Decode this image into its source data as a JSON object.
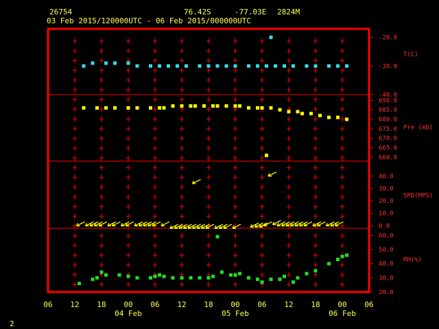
{
  "header": {
    "station": "26754",
    "lat": "76.42S",
    "lon": "-77.03E",
    "elev": "2824M",
    "time_range": "03 Feb 2015/120000UTC - 06 Feb 2015/000000UTC"
  },
  "footer": {
    "page_number": "2"
  },
  "colors": {
    "frame": "#ff0000",
    "temperature": "#33ddee",
    "pressure": "#ffff00",
    "wind": "#ffff00",
    "rh": "#22dd22",
    "text": "#ffff55"
  },
  "chart_data": {
    "type": "scatter",
    "x_axis": {
      "ticks": [
        "06",
        "12",
        "18",
        "00",
        "06",
        "12",
        "18",
        "00",
        "06",
        "12",
        "18",
        "00",
        "06"
      ],
      "day_labels": [
        {
          "label": "04 Feb",
          "at_hour": 24
        },
        {
          "label": "05 Feb",
          "at_hour": 48
        },
        {
          "label": "06 Feb",
          "at_hour": 72
        }
      ],
      "xlim_hours_from_03Feb00": [
        6,
        78
      ]
    },
    "panels": [
      {
        "name": "temperature",
        "ylabel": "T(C)",
        "ylim": [
          -40,
          -17
        ],
        "ticks": [
          "-20.0",
          "-30.0",
          "-40.0"
        ],
        "tick_values": [
          -20,
          -30,
          -40
        ],
        "points": [
          [
            14,
            -30
          ],
          [
            16,
            -29
          ],
          [
            19,
            -29
          ],
          [
            21,
            -29
          ],
          [
            24,
            -29
          ],
          [
            26,
            -30
          ],
          [
            29,
            -30
          ],
          [
            31,
            -30
          ],
          [
            33,
            -30
          ],
          [
            35,
            -30
          ],
          [
            37,
            -30
          ],
          [
            40,
            -30
          ],
          [
            42,
            -30
          ],
          [
            44,
            -30
          ],
          [
            46,
            -30
          ],
          [
            48,
            -30
          ],
          [
            51,
            -30
          ],
          [
            53,
            -30
          ],
          [
            55,
            -30
          ],
          [
            56,
            -20
          ],
          [
            57,
            -30
          ],
          [
            59,
            -30
          ],
          [
            61,
            -30
          ],
          [
            64,
            -30
          ],
          [
            66,
            -30
          ],
          [
            69,
            -30
          ],
          [
            71,
            -30
          ],
          [
            73,
            -30
          ]
        ]
      },
      {
        "name": "pressure",
        "ylabel": "Pre (mb)",
        "ylim": [
          658,
          693
        ],
        "ticks": [
          "690.0",
          "685.0",
          "680.0",
          "675.0",
          "670.0",
          "665.0",
          "660.0"
        ],
        "tick_values": [
          690,
          685,
          680,
          675,
          670,
          665,
          660
        ],
        "points": [
          [
            14,
            686
          ],
          [
            17,
            686
          ],
          [
            19,
            686
          ],
          [
            21,
            686
          ],
          [
            24,
            686
          ],
          [
            26,
            686
          ],
          [
            29,
            686
          ],
          [
            31,
            686
          ],
          [
            32,
            686
          ],
          [
            34,
            687
          ],
          [
            36,
            687
          ],
          [
            38,
            687
          ],
          [
            39,
            687
          ],
          [
            41,
            687
          ],
          [
            43,
            687
          ],
          [
            44,
            687
          ],
          [
            46,
            687
          ],
          [
            48,
            687
          ],
          [
            49,
            687
          ],
          [
            51,
            686
          ],
          [
            53,
            686
          ],
          [
            54,
            686
          ],
          [
            55,
            661
          ],
          [
            56,
            686
          ],
          [
            58,
            685
          ],
          [
            60,
            684
          ],
          [
            62,
            684
          ],
          [
            63,
            683
          ],
          [
            65,
            683
          ],
          [
            67,
            682
          ],
          [
            69,
            681
          ],
          [
            71,
            681
          ],
          [
            73,
            680
          ]
        ]
      },
      {
        "name": "wind",
        "ylabel": "SPD(MPS)",
        "ylim": [
          -2,
          52
        ],
        "ticks": [
          "40.0",
          "30.0",
          "20.0",
          "10.0",
          "0.0"
        ],
        "tick_values": [
          40,
          30,
          20,
          10,
          0
        ],
        "points": [
          [
            13,
            1
          ],
          [
            15,
            1
          ],
          [
            16,
            1
          ],
          [
            17,
            1
          ],
          [
            18,
            1
          ],
          [
            20,
            1
          ],
          [
            21,
            1
          ],
          [
            23,
            1
          ],
          [
            24,
            1
          ],
          [
            26,
            1
          ],
          [
            27,
            1
          ],
          [
            28,
            1
          ],
          [
            29,
            1
          ],
          [
            30,
            1
          ],
          [
            32,
            1
          ],
          [
            34,
            -1
          ],
          [
            35,
            -1
          ],
          [
            36,
            -1
          ],
          [
            37,
            -1
          ],
          [
            38,
            -1
          ],
          [
            39,
            -1
          ],
          [
            40,
            -1
          ],
          [
            41,
            -1
          ],
          [
            42,
            -1
          ],
          [
            44,
            -1
          ],
          [
            45,
            -1
          ],
          [
            46,
            -1
          ],
          [
            48,
            -1
          ],
          [
            39,
            35
          ],
          [
            52,
            0
          ],
          [
            53,
            0
          ],
          [
            54,
            0
          ],
          [
            55,
            1
          ],
          [
            57,
            2
          ],
          [
            58,
            1
          ],
          [
            59,
            1
          ],
          [
            60,
            1
          ],
          [
            61,
            1
          ],
          [
            62,
            1
          ],
          [
            63,
            1
          ],
          [
            64,
            1
          ],
          [
            66,
            1
          ],
          [
            67,
            1
          ],
          [
            69,
            1
          ],
          [
            70,
            1
          ],
          [
            71,
            1
          ],
          [
            56,
            41
          ]
        ]
      },
      {
        "name": "rh",
        "ylabel": "RH(%)",
        "ylim": [
          20,
          65
        ],
        "ticks": [
          "60.0",
          "50.0",
          "40.0",
          "30.0",
          "20.0"
        ],
        "tick_values": [
          60,
          50,
          40,
          30,
          20
        ],
        "points": [
          [
            13,
            26
          ],
          [
            16,
            29
          ],
          [
            17,
            30
          ],
          [
            18,
            34
          ],
          [
            19,
            32
          ],
          [
            22,
            32
          ],
          [
            24,
            31
          ],
          [
            26,
            30
          ],
          [
            29,
            30
          ],
          [
            30,
            31
          ],
          [
            31,
            32
          ],
          [
            32,
            31
          ],
          [
            34,
            30
          ],
          [
            36,
            30
          ],
          [
            38,
            30
          ],
          [
            40,
            30
          ],
          [
            42,
            30
          ],
          [
            43,
            31
          ],
          [
            44,
            59
          ],
          [
            45,
            34
          ],
          [
            47,
            32
          ],
          [
            48,
            32
          ],
          [
            49,
            33
          ],
          [
            51,
            30
          ],
          [
            53,
            29
          ],
          [
            54,
            27
          ],
          [
            56,
            29
          ],
          [
            58,
            29
          ],
          [
            59,
            31
          ],
          [
            61,
            27
          ],
          [
            62,
            30
          ],
          [
            64,
            33
          ],
          [
            66,
            35
          ],
          [
            69,
            40
          ],
          [
            71,
            43
          ],
          [
            72,
            45
          ],
          [
            73,
            46
          ]
        ]
      }
    ]
  }
}
